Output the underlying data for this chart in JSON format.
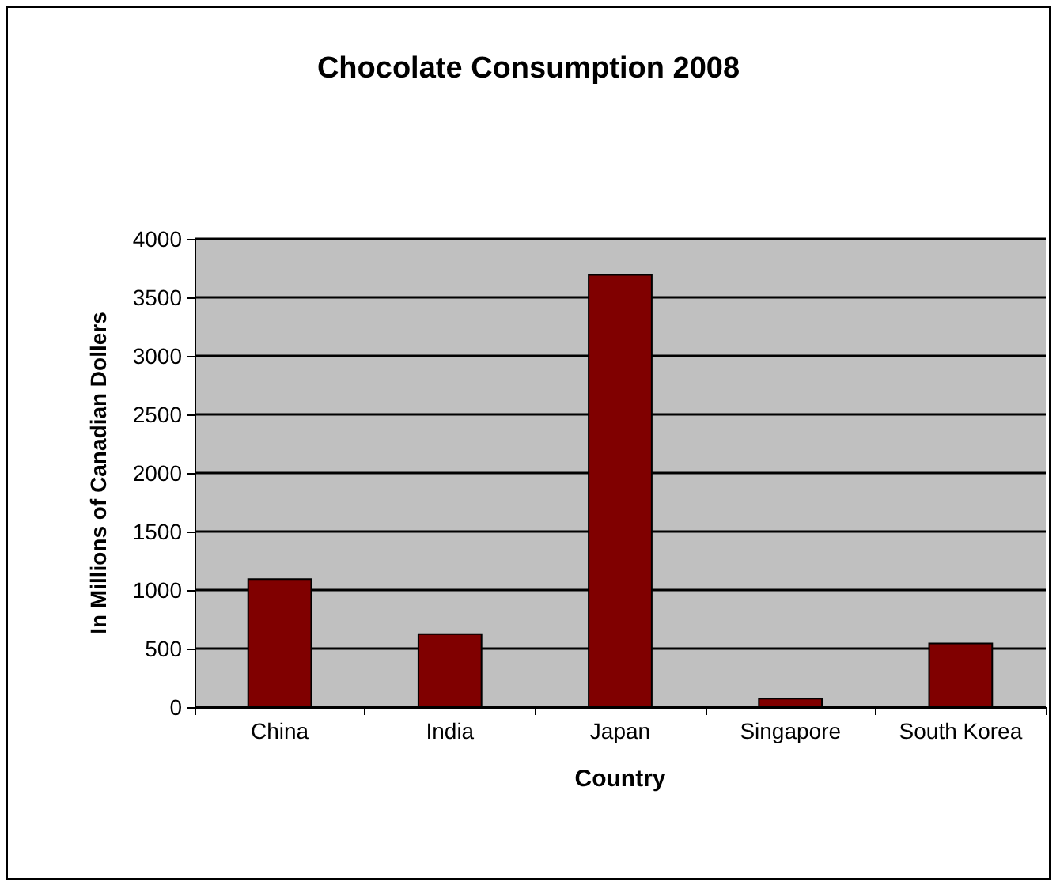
{
  "chart_data": {
    "type": "bar",
    "title": "Chocolate Consumption 2008",
    "xlabel": "Country",
    "ylabel": "In Millions of Canadian Dollers",
    "categories": [
      "China",
      "India",
      "Japan",
      "Singapore",
      "South Korea"
    ],
    "values": [
      1100,
      630,
      3700,
      80,
      550
    ],
    "color": "#800000",
    "ylim": [
      0,
      4000
    ],
    "yticks": [
      0,
      500,
      1000,
      1500,
      2000,
      2500,
      3000,
      3500,
      4000
    ],
    "grid": "y"
  }
}
